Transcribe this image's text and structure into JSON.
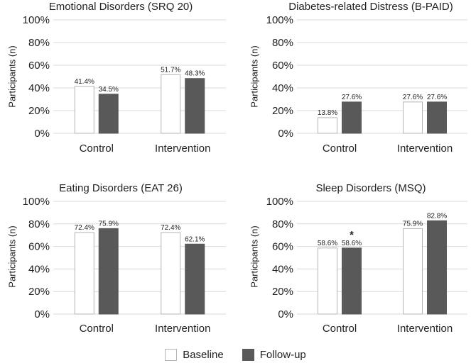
{
  "chart_data": [
    {
      "type": "bar",
      "title": "Emotional Disorders (SRQ 20)",
      "ylabel": "Participants (n)",
      "xlabel": "",
      "categories": [
        "Control",
        "Intervention"
      ],
      "ylim": [
        0,
        100
      ],
      "yticks": [
        "0%",
        "20%",
        "40%",
        "60%",
        "80%",
        "100%"
      ],
      "series": [
        {
          "name": "Baseline",
          "values": [
            41.4,
            51.7
          ],
          "labels": [
            "41.4%",
            "51.7%"
          ]
        },
        {
          "name": "Follow-up",
          "values": [
            34.5,
            48.3
          ],
          "labels": [
            "34.5%",
            "48.3%"
          ]
        }
      ],
      "annotations": []
    },
    {
      "type": "bar",
      "title": "Diabetes-related Distress (B-PAID)",
      "ylabel": "Participants (n)",
      "xlabel": "",
      "categories": [
        "Control",
        "Intervention"
      ],
      "ylim": [
        0,
        100
      ],
      "yticks": [
        "0%",
        "20%",
        "40%",
        "60%",
        "80%",
        "100%"
      ],
      "series": [
        {
          "name": "Baseline",
          "values": [
            13.8,
            27.6
          ],
          "labels": [
            "13.8%",
            "27.6%"
          ]
        },
        {
          "name": "Follow-up",
          "values": [
            27.6,
            27.6
          ],
          "labels": [
            "27.6%",
            "27.6%"
          ]
        }
      ],
      "annotations": []
    },
    {
      "type": "bar",
      "title": "Eating Disorders (EAT 26)",
      "ylabel": "Participants (n)",
      "xlabel": "",
      "categories": [
        "Control",
        "Intervention"
      ],
      "ylim": [
        0,
        100
      ],
      "yticks": [
        "0%",
        "20%",
        "40%",
        "60%",
        "80%",
        "100%"
      ],
      "series": [
        {
          "name": "Baseline",
          "values": [
            72.4,
            72.4
          ],
          "labels": [
            "72.4%",
            "72.4%"
          ]
        },
        {
          "name": "Follow-up",
          "values": [
            75.9,
            62.1
          ],
          "labels": [
            "75.9%",
            "62.1%"
          ]
        }
      ],
      "annotations": []
    },
    {
      "type": "bar",
      "title": "Sleep Disorders (MSQ)",
      "ylabel": "Participants (n)",
      "xlabel": "",
      "categories": [
        "Control",
        "Intervention"
      ],
      "ylim": [
        0,
        100
      ],
      "yticks": [
        "0%",
        "20%",
        "40%",
        "60%",
        "80%",
        "100%"
      ],
      "series": [
        {
          "name": "Baseline",
          "values": [
            58.6,
            75.9
          ],
          "labels": [
            "58.6%",
            "75.9%"
          ]
        },
        {
          "name": "Follow-up",
          "values": [
            58.6,
            82.8
          ],
          "labels": [
            "58.6%",
            "82.8%"
          ]
        }
      ],
      "annotations": [
        {
          "series": 1,
          "category": 0,
          "text": "*"
        }
      ]
    }
  ],
  "legend": {
    "baseline_label": "Baseline",
    "followup_label": "Follow-up"
  },
  "colors": {
    "baseline_fill": "#ffffff",
    "baseline_stroke": "#b5b5b5",
    "followup_fill": "#595959",
    "gridline": "#d9d9d9",
    "text": "#222222"
  }
}
